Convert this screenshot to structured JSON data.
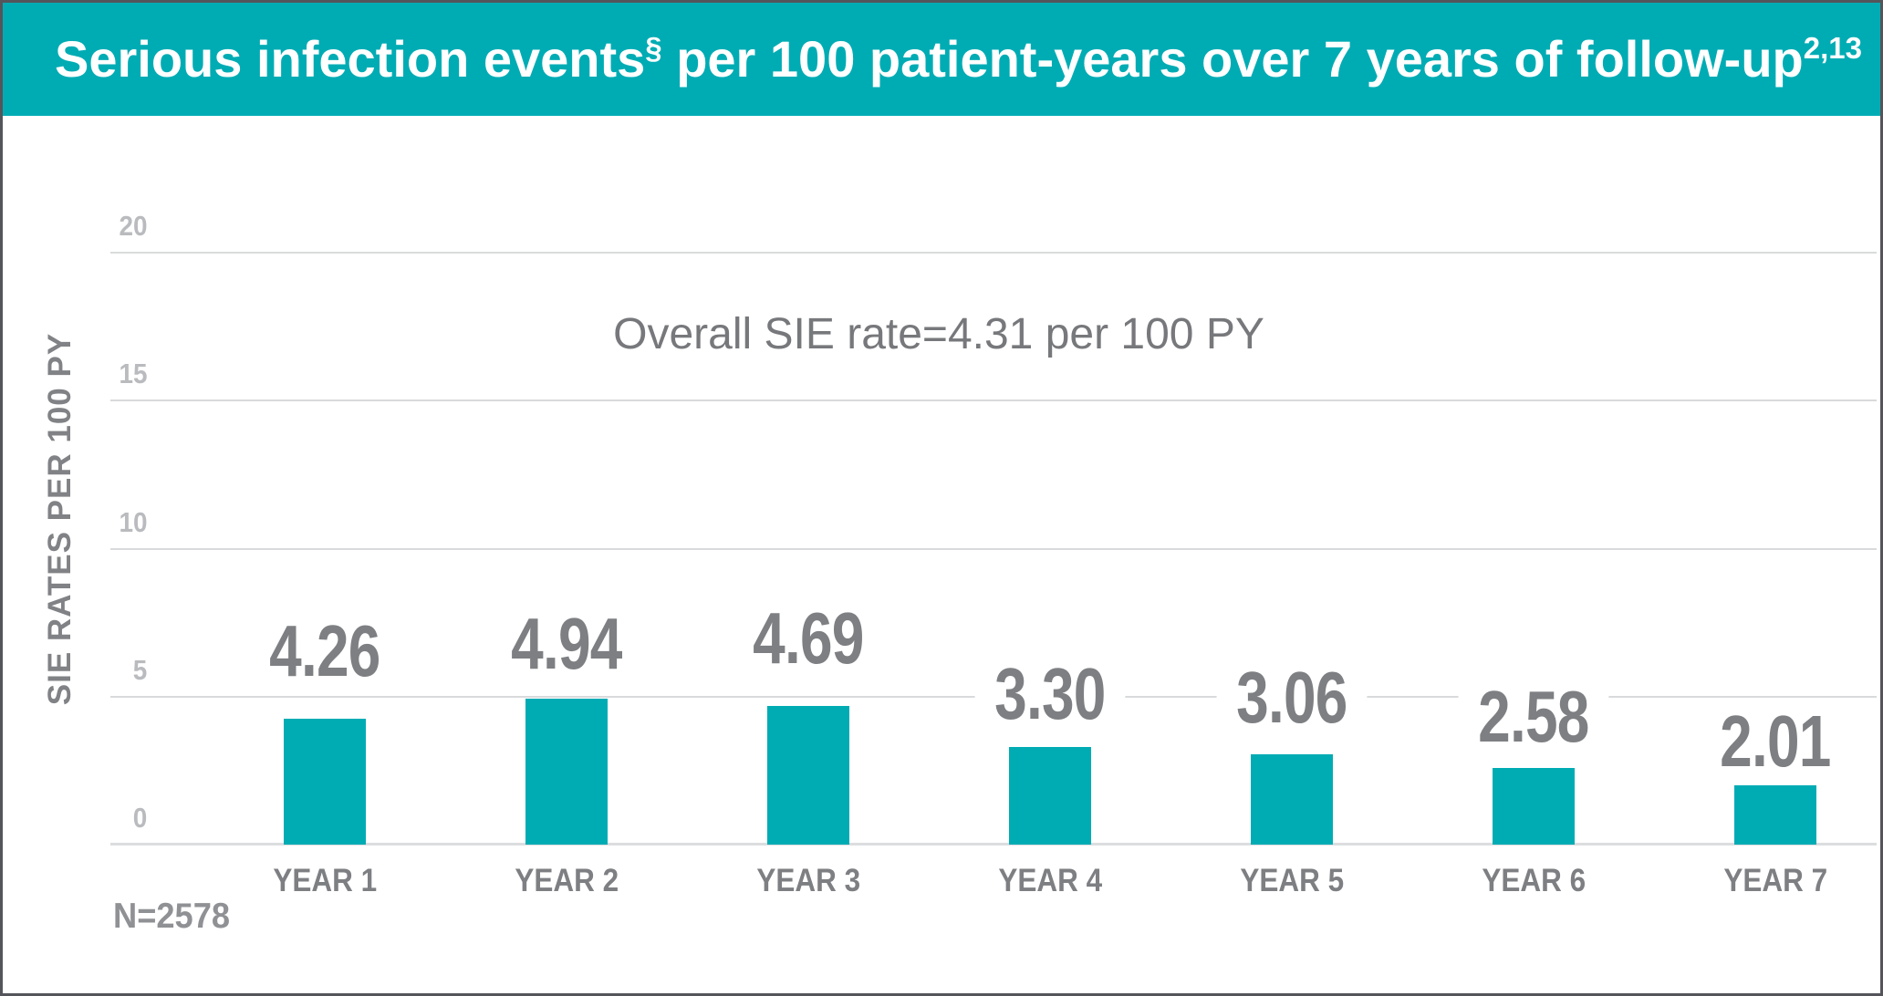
{
  "header": {
    "title_main": "Serious infection events",
    "title_sup_1": "§",
    "title_rest": " per 100 patient-years over 7 years of follow-up",
    "title_sup_2": "2,13"
  },
  "chart_data": {
    "type": "bar",
    "title": "Serious infection events§ per 100 patient-years over 7 years of follow-up2,13",
    "categories": [
      "YEAR 1",
      "YEAR 2",
      "YEAR 3",
      "YEAR 4",
      "YEAR 5",
      "YEAR 6",
      "YEAR 7"
    ],
    "values": [
      4.26,
      4.94,
      4.69,
      3.3,
      3.06,
      2.58,
      2.01
    ],
    "value_labels": [
      "4.26",
      "4.94",
      "4.69",
      "3.30",
      "3.06",
      "2.58",
      "2.01"
    ],
    "ylabel": "SIE RATES PER 100 PY",
    "xlabel": "",
    "yticks": [
      0,
      5,
      10,
      15,
      20
    ],
    "ylim": [
      0,
      20
    ],
    "grid": true,
    "legend": "none",
    "annotation": "Overall SIE rate=4.31 per 100 PY",
    "footnote": "N=2578",
    "colors": {
      "banner_bg": "#00ACB4",
      "banner_text": "#FFFFFF",
      "bar": "#00ACB4",
      "gridline": "#D9DADB",
      "tick_label": "#B9BBBE",
      "value_label": "#7D7F82",
      "category_label": "#7D7F82",
      "annotation": "#77787B",
      "footnote": "#8F9194",
      "frame_border": "#54555A"
    }
  }
}
